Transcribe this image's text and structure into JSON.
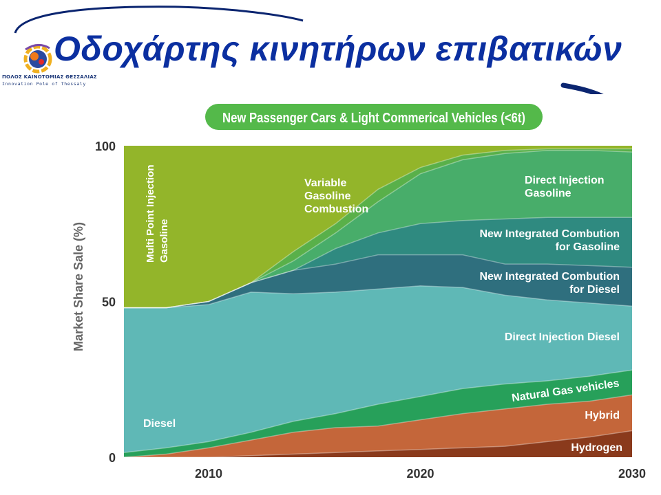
{
  "slide": {
    "title": "Οδοχάρτης κινητήρων επιβατικών",
    "logo": {
      "name": "ΠΟΛΟΣ ΚΑΙΝΟΤΟΜΙΑΣ ΘΕΣΣΑΛΙΑΣ",
      "tagline": "Innovation Pole of Thessaly"
    }
  },
  "colors": {
    "title": "#0b2fa0",
    "banner": "#54b94a",
    "hydrogen": "#8a3a1c",
    "hybrid": "#c4663a",
    "natural_gas": "#27a05a",
    "diesel": "#5fb8b6",
    "integrated_diesel": "#2f6f7e",
    "integrated_gasoline": "#2f8a80",
    "direct_injection_gasoline": "#48ad6a",
    "variable_gasoline": "#59b04a",
    "multipoint_gasoline": "#93b52a"
  },
  "chart_data": {
    "type": "area",
    "title": "New Passenger Cars & Light Commerical Vehicles (<6t)",
    "ylabel": "Market Share Sale (%)",
    "xlabel": "",
    "ylim": [
      0,
      100
    ],
    "yticks": [
      0,
      50,
      100
    ],
    "xticks": [
      2010,
      2020,
      2030
    ],
    "xlim": [
      2006,
      2030
    ],
    "stacking": "cumulative upper boundaries",
    "x": [
      2006,
      2008,
      2010,
      2012,
      2014,
      2016,
      2018,
      2020,
      2022,
      2024,
      2026,
      2028,
      2030
    ],
    "series": [
      {
        "name": "Hydrogen",
        "key": "hydrogen",
        "upper": [
          0,
          0,
          0,
          0.5,
          1,
          1.5,
          2,
          2.5,
          3,
          3.5,
          5,
          6.5,
          8.5
        ]
      },
      {
        "name": "Hybrid",
        "key": "hybrid",
        "upper": [
          0,
          1,
          3,
          5.5,
          8,
          9.5,
          10,
          12,
          14,
          15.5,
          17,
          18,
          20
        ]
      },
      {
        "name": "Natural Gas vehicles",
        "key": "natural_gas",
        "upper": [
          1.5,
          3,
          5,
          8,
          11.5,
          14,
          17,
          19.5,
          22,
          23.5,
          24.5,
          26,
          28
        ]
      },
      {
        "name": "Direct Injection Diesel",
        "key": "diesel",
        "upper": [
          48,
          48,
          49,
          53,
          52.5,
          53,
          54,
          55,
          54.5,
          52,
          50.5,
          49.5,
          48.5
        ]
      },
      {
        "name": "New Integrated Combution for Diesel",
        "key": "integrated_diesel",
        "upper": [
          48,
          48,
          50,
          56,
          60,
          62,
          65,
          65,
          65,
          62,
          62,
          61.5,
          61
        ]
      },
      {
        "name": "New Integrated Combution for Gasoline",
        "key": "integrated_gasoline",
        "upper": [
          48,
          48,
          50,
          56,
          60,
          67,
          72,
          75,
          76,
          76.5,
          77,
          77,
          77
        ]
      },
      {
        "name": "Direct Injection Gasoline",
        "key": "direct_injection_gasoline",
        "upper": [
          48,
          48,
          50,
          56,
          63,
          72,
          82,
          91,
          95.5,
          97.5,
          98.5,
          98.5,
          98
        ]
      },
      {
        "name": "Variable Gasoline Combustion",
        "key": "variable_gasoline",
        "upper": [
          48,
          48,
          50,
          56,
          66,
          75,
          86,
          93,
          97,
          98.5,
          99,
          99,
          99
        ]
      },
      {
        "name": "Multi Point Injection Gasoline",
        "key": "multipoint_gasoline",
        "upper": [
          100,
          100,
          100,
          100,
          100,
          100,
          100,
          100,
          100,
          100,
          100,
          100,
          100
        ]
      }
    ],
    "labels": {
      "multipoint": [
        "Multi Point Injection",
        "Gasoline"
      ],
      "variable": [
        "Variable",
        "Gasoline",
        "Combustion"
      ],
      "direct_injection_gasoline": [
        "Direct Injection",
        "Gasoline"
      ],
      "integrated_gasoline": [
        "New Integrated Combution",
        "for Gasoline"
      ],
      "integrated_diesel": [
        "New Integrated Combution",
        "for Diesel"
      ],
      "direct_injection_diesel": "Direct Injection Diesel",
      "diesel": "Diesel",
      "natural_gas": "Natural Gas vehicles",
      "hybrid": "Hybrid",
      "hydrogen": "Hydrogen"
    }
  }
}
